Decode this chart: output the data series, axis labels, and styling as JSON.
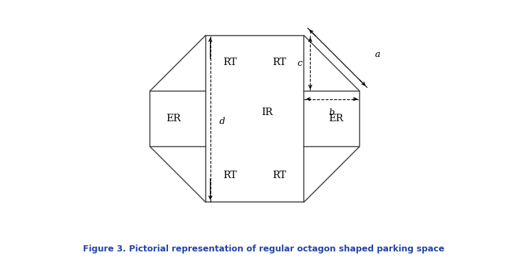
{
  "title": "Figure 3. Pictorial representation of regular octagon shaped parking space",
  "title_color": "#2244aa",
  "title_fontsize": 9.0,
  "bg_color": "#ffffff",
  "line_color": "#444444",
  "label_IR": "IR",
  "label_ER": "ER",
  "label_RT": "RT",
  "label_a": "a",
  "label_b": "b",
  "label_c": "c",
  "label_d": "d",
  "oct_hw": 1.7,
  "oct_hh": 1.35,
  "oct_cut": 0.9
}
